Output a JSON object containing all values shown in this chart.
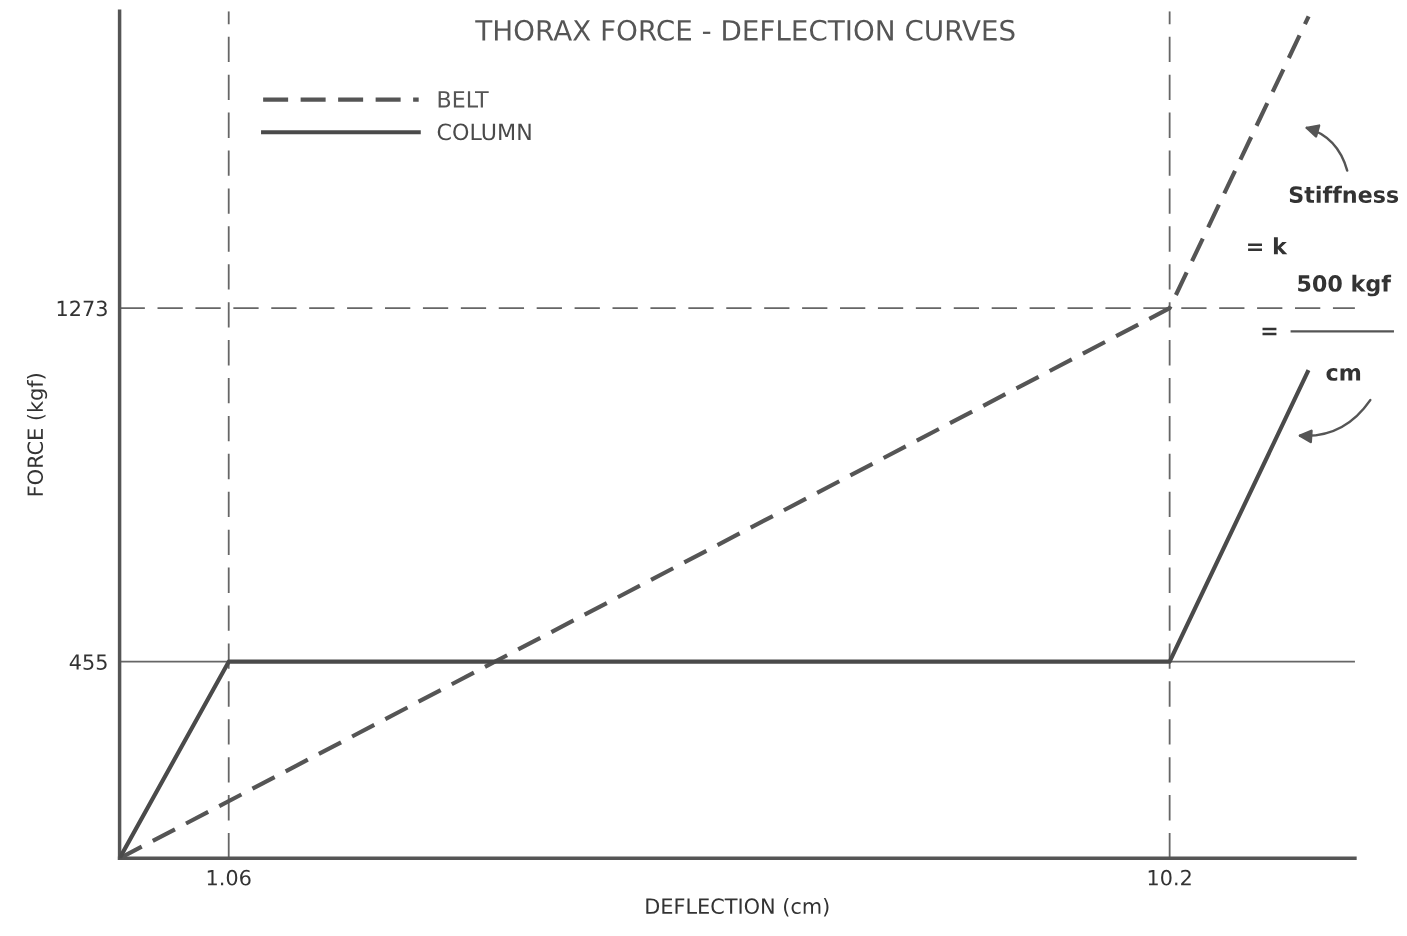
{
  "chart_data": {
    "type": "line",
    "title": "THORAX FORCE - DEFLECTION CURVES",
    "xlabel": "DEFLECTION (cm)",
    "ylabel": "FORCE (kgf)",
    "xlim": [
      0,
      12
    ],
    "ylim": [
      0,
      1960
    ],
    "xticks": [
      1.06,
      10.2
    ],
    "yticks": [
      455,
      1273
    ],
    "grid": false,
    "legend": "top left",
    "series": [
      {
        "name": "BELT",
        "color": "#555555",
        "line_style": "dashed",
        "x": [
          0,
          10.2,
          11.55
        ],
        "values": [
          0,
          1273,
          1948
        ]
      },
      {
        "name": "COLUMN",
        "color": "#4a4a4a",
        "line_style": "solid",
        "x": [
          0,
          1.06,
          10.2,
          11.54
        ],
        "values": [
          0,
          455,
          455,
          1125
        ]
      }
    ],
    "ref_lines": [
      {
        "axis": "y",
        "value": 1273,
        "line_style": "dashed",
        "color": "#666666"
      },
      {
        "axis": "y",
        "value": 455,
        "line_style": "solid",
        "color": "#666666"
      },
      {
        "axis": "x",
        "value": 1.06,
        "line_style": "dashed",
        "color": "#666666"
      },
      {
        "axis": "x",
        "value": 10.2,
        "line_style": "dashed",
        "color": "#666666"
      }
    ],
    "annotations": [
      "Stiffness",
      "= k",
      "= ",
      "500 kgf",
      "cm"
    ]
  }
}
